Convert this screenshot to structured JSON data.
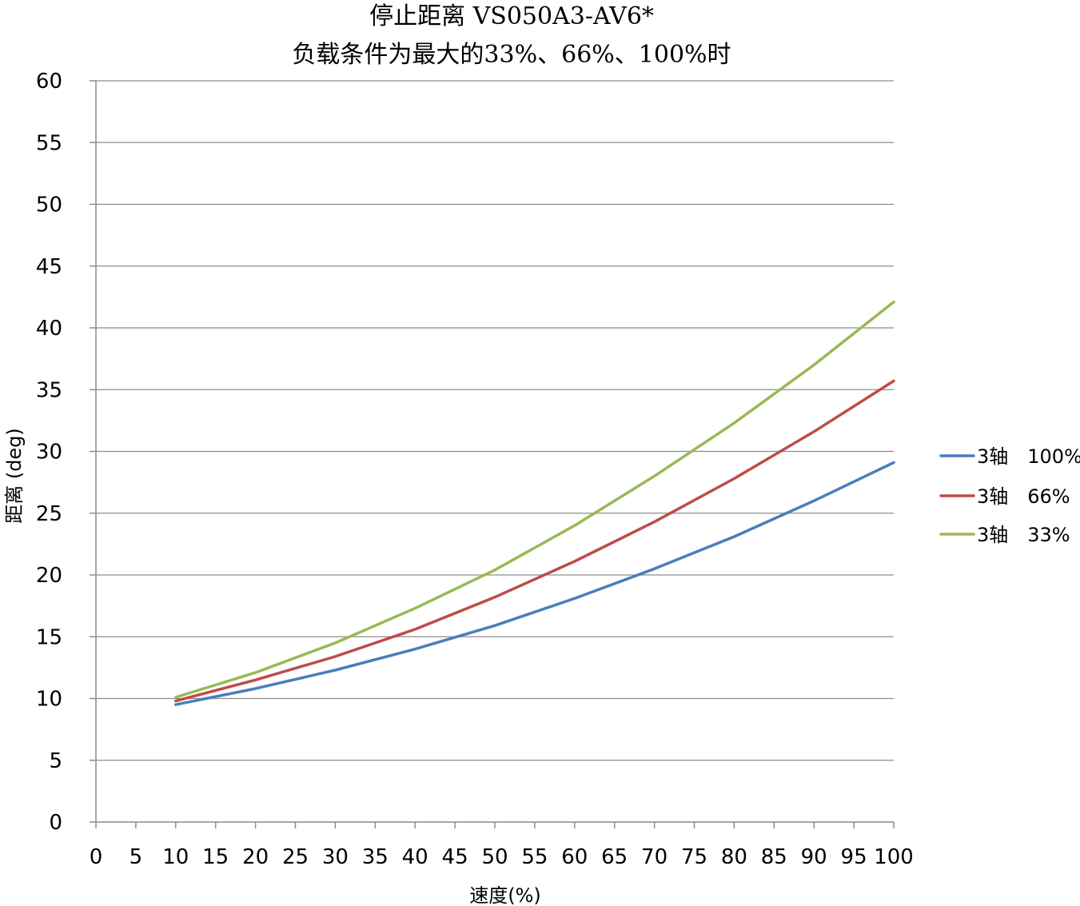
{
  "chart_data": {
    "type": "line",
    "title": "停止距离 VS050A3-AV6*",
    "subtitle": "负载条件为最大的33%、66%、100%时",
    "xlabel": "速度(%)",
    "ylabel": "距离 (deg)",
    "xlim": [
      0,
      100
    ],
    "ylim": [
      0,
      60
    ],
    "xticks": [
      0,
      5,
      10,
      15,
      20,
      25,
      30,
      35,
      40,
      45,
      50,
      55,
      60,
      65,
      70,
      75,
      80,
      85,
      90,
      95,
      100
    ],
    "yticks": [
      0,
      5,
      10,
      15,
      20,
      25,
      30,
      35,
      40,
      45,
      50,
      55,
      60
    ],
    "grid": "horizontal",
    "legend_position": "right",
    "x": [
      10,
      20,
      30,
      40,
      50,
      60,
      70,
      80,
      90,
      100
    ],
    "series": [
      {
        "name": "3轴　100%",
        "color": "#4a7ebb",
        "values": [
          9.5,
          10.8,
          12.3,
          14.0,
          15.9,
          18.1,
          20.5,
          23.1,
          26.0,
          29.1
        ]
      },
      {
        "name": "3轴　66%",
        "color": "#be4b48",
        "values": [
          9.8,
          11.5,
          13.4,
          15.6,
          18.2,
          21.1,
          24.3,
          27.8,
          31.6,
          35.7
        ]
      },
      {
        "name": "3轴　33%",
        "color": "#98b954",
        "values": [
          10.1,
          12.1,
          14.5,
          17.3,
          20.4,
          24.0,
          28.0,
          32.3,
          37.0,
          42.1
        ]
      }
    ]
  }
}
